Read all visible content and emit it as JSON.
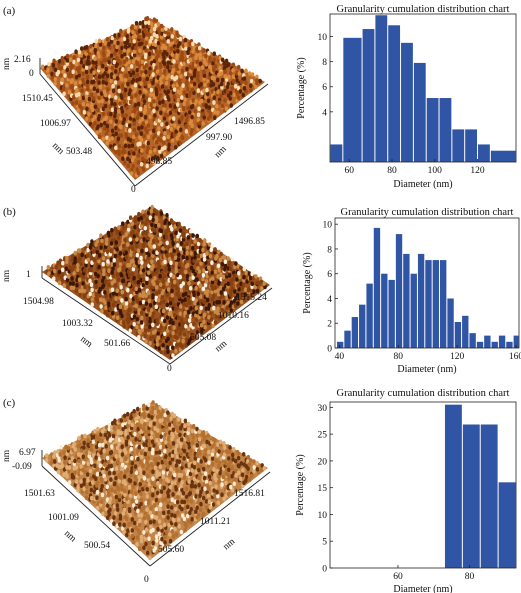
{
  "panels": [
    {
      "label": "(a)",
      "afm": {
        "z_unit": "nm",
        "z_max": "2.16",
        "z_min": "0",
        "y_unit": "nm",
        "y_ticks": [
          "1510.45",
          "1006.97",
          "503.48",
          "0"
        ],
        "x_unit": "nm",
        "x_ticks": [
          "1496.85",
          "997.90",
          "498.85"
        ],
        "tone": [
          "#5a2408",
          "#9c4a12",
          "#d98a3a",
          "#f8dcb0"
        ]
      },
      "chart_data": {
        "type": "bar",
        "title": "Granularity cumulation distribution chart",
        "xlabel": "Diameter (nm)",
        "ylabel": "Percentage (%)",
        "xlim": [
          51,
          138
        ],
        "ylim": [
          0,
          11.8
        ],
        "xticks": [
          "60",
          "80",
          "100",
          "120"
        ],
        "yticks": [
          "4",
          "6",
          "8",
          "10"
        ],
        "bar_color": "#2f55a4",
        "bars": [
          {
            "x0": 51,
            "x1": 57,
            "value": 1.4
          },
          {
            "x0": 57,
            "x1": 66,
            "value": 9.9
          },
          {
            "x0": 66,
            "x1": 72,
            "value": 10.6
          },
          {
            "x0": 72,
            "x1": 78,
            "value": 11.7
          },
          {
            "x0": 78,
            "x1": 84,
            "value": 10.9
          },
          {
            "x0": 84,
            "x1": 90,
            "value": 9.5
          },
          {
            "x0": 90,
            "x1": 96,
            "value": 7.9
          },
          {
            "x0": 96,
            "x1": 102,
            "value": 5.1
          },
          {
            "x0": 102,
            "x1": 108,
            "value": 5.1
          },
          {
            "x0": 108,
            "x1": 114,
            "value": 2.6
          },
          {
            "x0": 114,
            "x1": 120,
            "value": 2.6
          },
          {
            "x0": 120,
            "x1": 126,
            "value": 1.4
          },
          {
            "x0": 126,
            "x1": 138,
            "value": 0.9
          }
        ]
      }
    },
    {
      "label": "(b)",
      "afm": {
        "z_unit": "nm",
        "z_max": "1",
        "z_min": "",
        "y_unit": "nm",
        "y_ticks": [
          "1504.98",
          "1003.32",
          "501.66",
          "0"
        ],
        "x_unit": "nm",
        "x_ticks": [
          "1515.24",
          "1010.16",
          "505.08"
        ],
        "tone": [
          "#3e1806",
          "#86400f",
          "#c98a45",
          "#fbf0de"
        ]
      },
      "chart_data": {
        "type": "bar",
        "title": "Granularity cumulation distribution chart",
        "xlabel": "Diameter (nm)",
        "ylabel": "Percentage (%)",
        "xlim": [
          37,
          162
        ],
        "ylim": [
          0,
          10.5
        ],
        "xticks": [
          "40",
          "80",
          "120",
          "160"
        ],
        "yticks": [
          "0",
          "2",
          "4",
          "6",
          "8",
          "10"
        ],
        "bar_color": "#2f55a4",
        "bars": [
          {
            "x0": 38,
            "x1": 43,
            "value": 0.5
          },
          {
            "x0": 43,
            "x1": 48,
            "value": 1.4
          },
          {
            "x0": 48,
            "x1": 53,
            "value": 2.5
          },
          {
            "x0": 53,
            "x1": 58,
            "value": 3.5
          },
          {
            "x0": 58,
            "x1": 63,
            "value": 5.2
          },
          {
            "x0": 63,
            "x1": 68,
            "value": 9.7
          },
          {
            "x0": 68,
            "x1": 73,
            "value": 6.0
          },
          {
            "x0": 73,
            "x1": 78,
            "value": 5.5
          },
          {
            "x0": 78,
            "x1": 83,
            "value": 9.2
          },
          {
            "x0": 83,
            "x1": 88,
            "value": 7.6
          },
          {
            "x0": 88,
            "x1": 93,
            "value": 6.0
          },
          {
            "x0": 93,
            "x1": 98,
            "value": 7.6
          },
          {
            "x0": 98,
            "x1": 103,
            "value": 7.1
          },
          {
            "x0": 103,
            "x1": 108,
            "value": 7.1
          },
          {
            "x0": 108,
            "x1": 113,
            "value": 7.1
          },
          {
            "x0": 113,
            "x1": 118,
            "value": 4.0
          },
          {
            "x0": 118,
            "x1": 123,
            "value": 2.1
          },
          {
            "x0": 123,
            "x1": 128,
            "value": 2.6
          },
          {
            "x0": 128,
            "x1": 133,
            "value": 1.2
          },
          {
            "x0": 133,
            "x1": 138,
            "value": 0.5
          },
          {
            "x0": 138,
            "x1": 143,
            "value": 1.0
          },
          {
            "x0": 143,
            "x1": 148,
            "value": 0.5
          },
          {
            "x0": 148,
            "x1": 153,
            "value": 1.0
          },
          {
            "x0": 153,
            "x1": 158,
            "value": 0.5
          },
          {
            "x0": 158,
            "x1": 162,
            "value": 1.0
          }
        ]
      }
    },
    {
      "label": "(c)",
      "afm": {
        "z_unit": "nm",
        "z_max": "6.97",
        "z_min": "-0.09",
        "y_unit": "nm",
        "y_ticks": [
          "1501.63",
          "1001.09",
          "500.54",
          "0"
        ],
        "x_unit": "nm",
        "x_ticks": [
          "1516.81",
          "1011.21",
          "505.60"
        ],
        "tone": [
          "#6b3410",
          "#b4702e",
          "#e0ad74",
          "#fbead2"
        ]
      },
      "chart_data": {
        "type": "bar",
        "title": "Granularity cumulation distribution chart",
        "xlabel": "Diameter (nm)",
        "ylabel": "Percentage (%)",
        "xlim": [
          41,
          93
        ],
        "ylim": [
          0,
          31
        ],
        "xticks": [
          "60",
          "80"
        ],
        "yticks": [
          "0",
          "5",
          "10",
          "15",
          "20",
          "25",
          "30"
        ],
        "bar_color": "#2f55a4",
        "bars": [
          {
            "x0": 73,
            "x1": 78,
            "value": 30.5
          },
          {
            "x0": 78,
            "x1": 83,
            "value": 26.8
          },
          {
            "x0": 83,
            "x1": 88,
            "value": 26.8
          },
          {
            "x0": 88,
            "x1": 93,
            "value": 16.0
          }
        ]
      }
    }
  ]
}
